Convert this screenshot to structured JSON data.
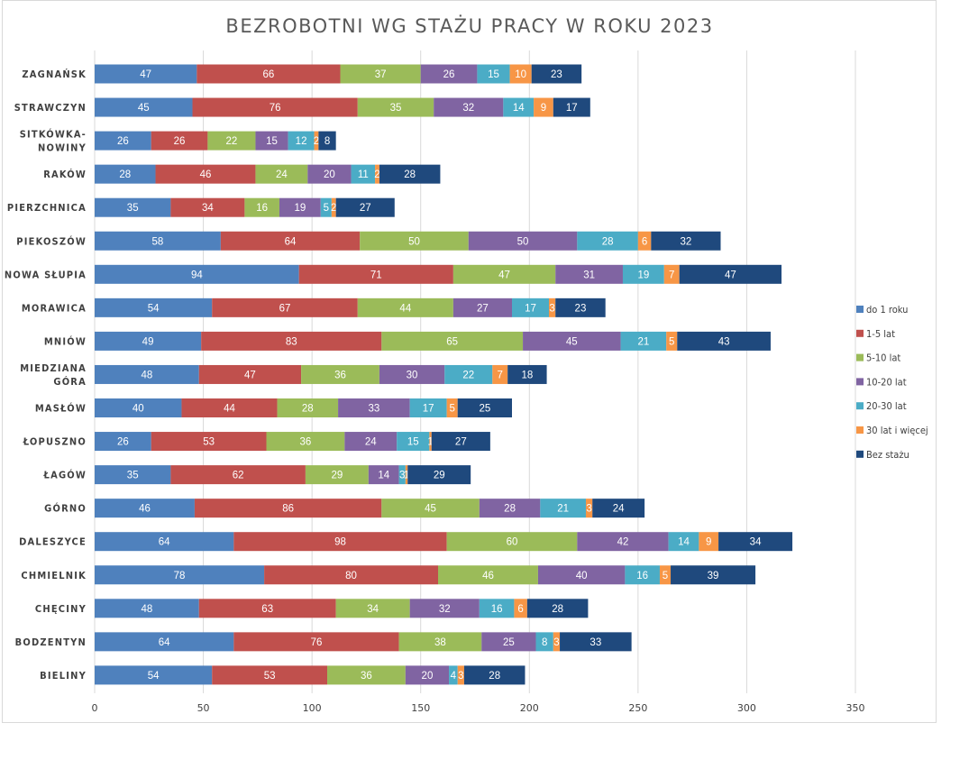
{
  "chart_data": {
    "type": "bar",
    "orientation": "horizontal",
    "stacked": true,
    "title": "BEZROBOTNI WG STAŻU PRACY W ROKU 2023",
    "xlabel": "",
    "ylabel": "",
    "xlim": [
      0,
      350
    ],
    "xticks": [
      0,
      50,
      100,
      150,
      200,
      250,
      300,
      350
    ],
    "grid": true,
    "legend_position": "right",
    "categories": [
      {
        "lines": [
          "ZAGNAŃSK"
        ]
      },
      {
        "lines": [
          "STRAWCZYN"
        ]
      },
      {
        "lines": [
          "SITKÓWKA-",
          "NOWINY"
        ]
      },
      {
        "lines": [
          "RAKÓW"
        ]
      },
      {
        "lines": [
          "PIERZCHNICA"
        ]
      },
      {
        "lines": [
          "PIEKOSZÓW"
        ]
      },
      {
        "lines": [
          "NOWA SŁUPIA"
        ]
      },
      {
        "lines": [
          "MORAWICA"
        ]
      },
      {
        "lines": [
          "MNIÓW"
        ]
      },
      {
        "lines": [
          "MIEDZIANA",
          "GÓRA"
        ]
      },
      {
        "lines": [
          "MASŁÓW"
        ]
      },
      {
        "lines": [
          "ŁOPUSZNO"
        ]
      },
      {
        "lines": [
          "ŁAGÓW"
        ]
      },
      {
        "lines": [
          "GÓRNO"
        ]
      },
      {
        "lines": [
          "DALESZYCE"
        ]
      },
      {
        "lines": [
          "CHMIELNIK"
        ]
      },
      {
        "lines": [
          "CHĘCINY"
        ]
      },
      {
        "lines": [
          "BODZENTYN"
        ]
      },
      {
        "lines": [
          "BIELINY"
        ]
      }
    ],
    "series": [
      {
        "name": "do 1 roku",
        "color": "#4f81bd",
        "values": [
          47,
          45,
          26,
          28,
          35,
          58,
          94,
          54,
          49,
          48,
          40,
          26,
          35,
          46,
          64,
          78,
          48,
          64,
          54
        ]
      },
      {
        "name": "1-5 lat",
        "color": "#c0504d",
        "values": [
          66,
          76,
          26,
          46,
          34,
          64,
          71,
          67,
          83,
          47,
          44,
          53,
          62,
          86,
          98,
          80,
          63,
          76,
          53
        ]
      },
      {
        "name": "5-10 lat",
        "color": "#9bbb59",
        "values": [
          37,
          35,
          22,
          24,
          16,
          50,
          47,
          44,
          65,
          36,
          28,
          36,
          29,
          45,
          60,
          46,
          34,
          38,
          36
        ]
      },
      {
        "name": "10-20 lat",
        "color": "#8064a2",
        "values": [
          26,
          32,
          15,
          20,
          19,
          50,
          31,
          27,
          45,
          30,
          33,
          24,
          14,
          28,
          42,
          40,
          32,
          25,
          20
        ]
      },
      {
        "name": "20-30 lat",
        "color": "#4bacc6",
        "values": [
          15,
          14,
          12,
          11,
          5,
          28,
          19,
          17,
          21,
          22,
          17,
          15,
          3,
          21,
          14,
          16,
          16,
          8,
          4
        ]
      },
      {
        "name": "30 lat i więcej",
        "color": "#f79646",
        "values": [
          10,
          9,
          2,
          2,
          2,
          6,
          7,
          3,
          5,
          7,
          5,
          1,
          1,
          3,
          9,
          5,
          6,
          3,
          3
        ]
      },
      {
        "name": "Bez stażu",
        "color": "#1f497d",
        "values": [
          23,
          17,
          8,
          28,
          27,
          32,
          47,
          23,
          43,
          18,
          25,
          27,
          29,
          24,
          34,
          39,
          28,
          33,
          28
        ]
      }
    ]
  }
}
